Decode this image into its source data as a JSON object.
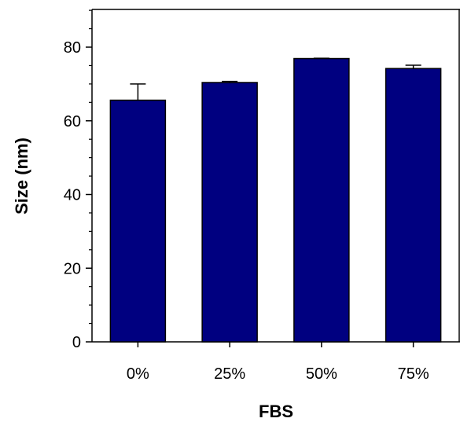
{
  "chart_data": {
    "type": "bar",
    "categories": [
      "0%",
      "25%",
      "50%",
      "75%"
    ],
    "values": [
      65.6,
      70.4,
      76.9,
      74.2
    ],
    "errors": [
      4.4,
      0.3,
      0.1,
      0.9
    ],
    "xlabel": "FBS",
    "ylabel": "Size (nm)",
    "ylim": [
      0,
      80
    ],
    "yticks": [
      0,
      20,
      40,
      60,
      80
    ],
    "ytick_labels": [
      "0",
      "20",
      "40",
      "60",
      "80"
    ],
    "bar_color": "#000080",
    "grid": false,
    "legend": "none"
  }
}
